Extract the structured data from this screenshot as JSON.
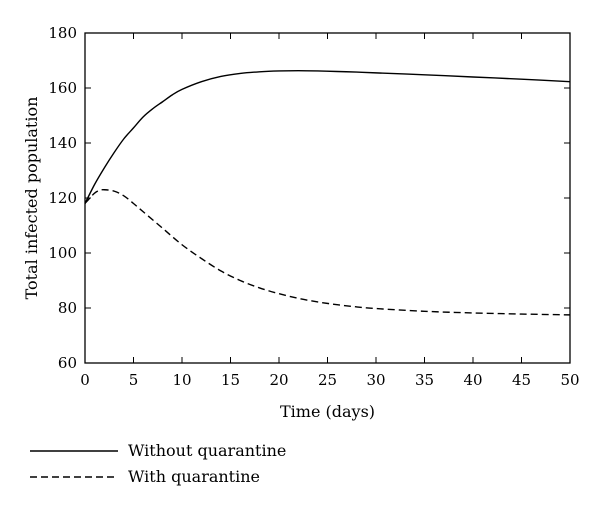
{
  "chart_data": {
    "type": "line",
    "title": "",
    "xlabel": "Time (days)",
    "ylabel": "Total infected population",
    "xlim": [
      0,
      50
    ],
    "ylim": [
      60,
      180
    ],
    "xticks": [
      0,
      5,
      10,
      15,
      20,
      25,
      30,
      35,
      40,
      45,
      50
    ],
    "yticks": [
      60,
      80,
      100,
      120,
      140,
      160,
      180
    ],
    "grid": false,
    "legend_position": "bottom-left, below plot",
    "series": [
      {
        "name": "Without quarantine",
        "line_style": "solid",
        "color": "#000000",
        "x": [
          0,
          1,
          2,
          3,
          4,
          5,
          6,
          7,
          8,
          9,
          10,
          12,
          14,
          16,
          18,
          20,
          22,
          24,
          26,
          28,
          30,
          35,
          40,
          45,
          50
        ],
        "y": [
          118,
          125,
          131,
          136.5,
          141.5,
          145.5,
          149.5,
          152.5,
          155,
          157.5,
          159.5,
          162.3,
          164.2,
          165.3,
          165.9,
          166.2,
          166.3,
          166.2,
          166,
          165.8,
          165.5,
          164.8,
          164,
          163.2,
          162.3
        ]
      },
      {
        "name": "With quarantine",
        "line_style": "dashed",
        "color": "#000000",
        "x": [
          0,
          0.5,
          1,
          1.5,
          2,
          3,
          4,
          5,
          6,
          8,
          10,
          12,
          14,
          16,
          18,
          20,
          22,
          24,
          26,
          28,
          30,
          35,
          40,
          45,
          50
        ],
        "y": [
          118,
          120,
          121.8,
          122.8,
          123,
          122.5,
          120.8,
          118,
          115,
          109,
          103,
          98,
          93.5,
          90,
          87.3,
          85.2,
          83.5,
          82.2,
          81.2,
          80.4,
          79.8,
          78.8,
          78.2,
          77.8,
          77.5
        ]
      }
    ]
  }
}
